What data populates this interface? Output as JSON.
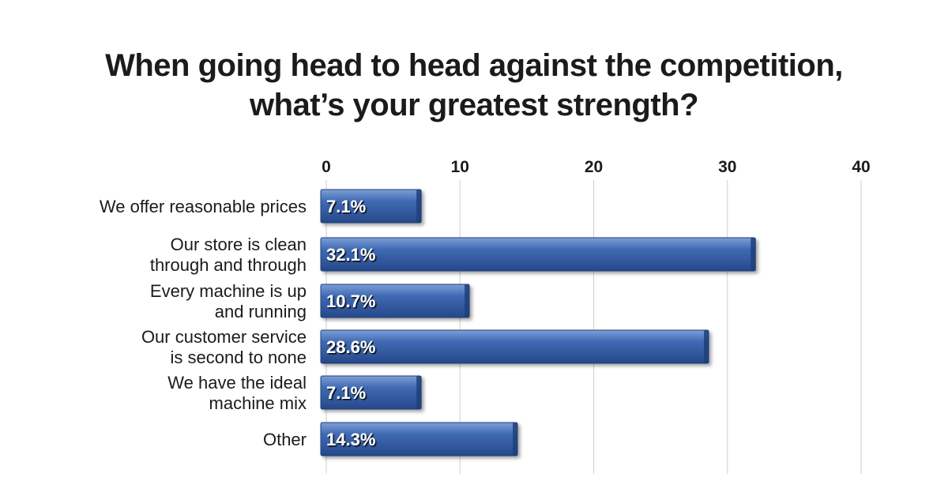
{
  "chart_data": {
    "type": "bar",
    "orientation": "horizontal",
    "title": "When going head to head against the competition, what’s your greatest strength?",
    "title_lines": [
      "When going head to head against the competition,",
      "what’s your greatest strength?"
    ],
    "categories": [
      "We offer reasonable prices",
      "Our store is clean through and through",
      "Every machine is up and running",
      "Our customer service is second to none",
      "We have the ideal machine mix",
      "Other"
    ],
    "category_lines": [
      [
        "We offer reasonable prices"
      ],
      [
        "Our store is clean",
        "through and through"
      ],
      [
        "Every machine is up",
        "and running"
      ],
      [
        "Our customer service",
        "is second to none"
      ],
      [
        "We have the ideal",
        "machine mix"
      ],
      [
        "Other"
      ]
    ],
    "values": [
      7.1,
      32.1,
      10.7,
      28.6,
      7.1,
      14.3
    ],
    "data_labels": [
      "7.1%",
      "32.1%",
      "10.7%",
      "28.6%",
      "7.1%",
      "14.3%"
    ],
    "x_ticks": [
      0,
      10,
      20,
      30,
      40
    ],
    "xlim": [
      0,
      40
    ],
    "tick_position": "top",
    "grid": true,
    "bar_color": "#3a64ad",
    "bar_color_dark": "#1f3f7a",
    "xlabel": "",
    "ylabel": ""
  }
}
